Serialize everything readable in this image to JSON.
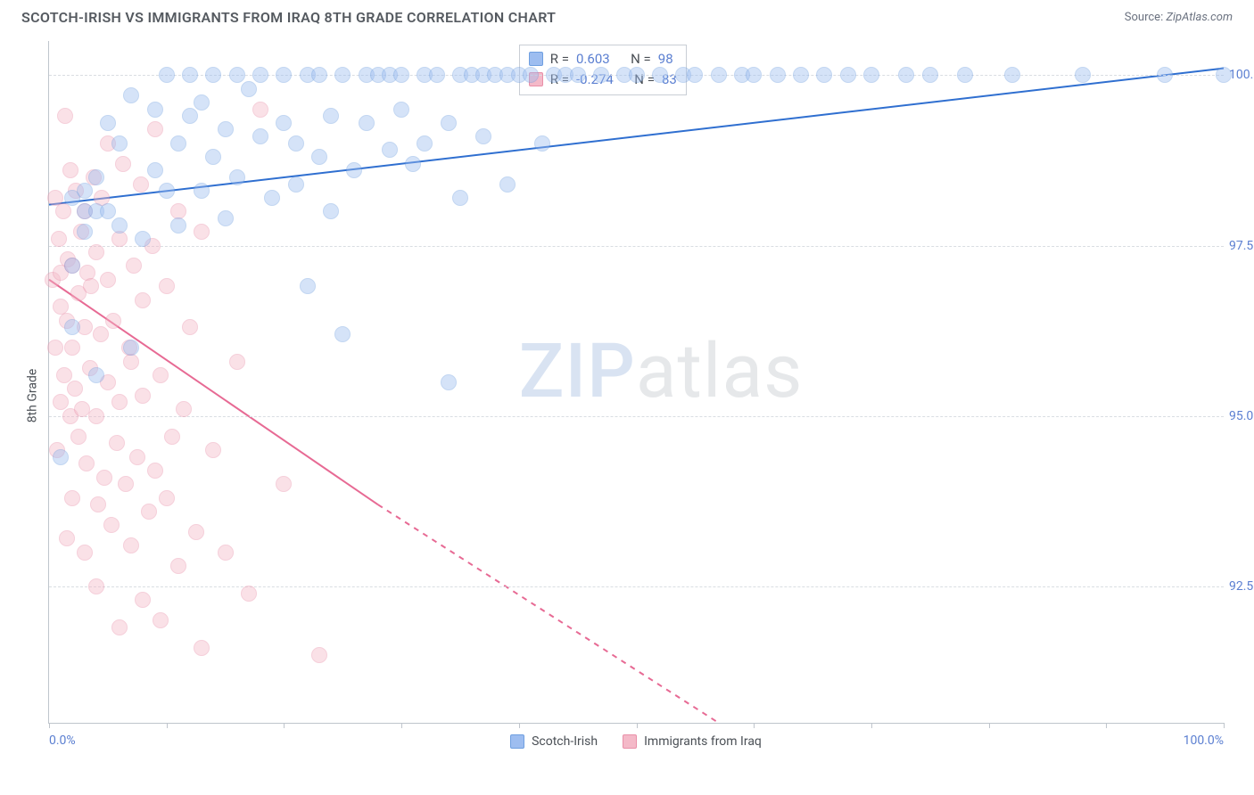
{
  "title": "SCOTCH-IRISH VS IMMIGRANTS FROM IRAQ 8TH GRADE CORRELATION CHART",
  "source_label": "Source:",
  "source_value": "ZipAtlas.com",
  "ylabel": "8th Grade",
  "watermark_a": "ZIP",
  "watermark_b": "atlas",
  "chart": {
    "type": "scatter",
    "xlim": [
      0,
      100
    ],
    "ylim": [
      90.5,
      100.5
    ],
    "ytick_values": [
      92.5,
      95.0,
      97.5,
      100.0
    ],
    "ytick_labels": [
      "92.5%",
      "95.0%",
      "97.5%",
      "100.0%"
    ],
    "xtick_values": [
      0,
      10,
      20,
      30,
      40,
      50,
      60,
      70,
      80,
      90,
      100
    ],
    "xtick_labels_shown": {
      "0": "0.0%",
      "100": "100.0%"
    },
    "background_color": "#ffffff",
    "grid_color": "#d9dde2",
    "axis_color": "#bfc5cc",
    "tick_label_color": "#5b7fd1",
    "marker_radius": 9,
    "marker_opacity": 0.42,
    "trend_line_width": 2
  },
  "series": {
    "blue": {
      "label": "Scotch-Irish",
      "color_fill": "#9dbdf0",
      "color_stroke": "#6f9fe0",
      "line_color": "#2f6fd0",
      "R": "0.603",
      "N": "98",
      "trend": {
        "x1": 0,
        "y1": 98.1,
        "x2": 100,
        "y2": 100.1
      },
      "points": [
        [
          1,
          94.4
        ],
        [
          2,
          96.3
        ],
        [
          2,
          97.2
        ],
        [
          2,
          98.2
        ],
        [
          3,
          97.7
        ],
        [
          3,
          98.0
        ],
        [
          3,
          98.3
        ],
        [
          4,
          95.6
        ],
        [
          4,
          98.0
        ],
        [
          4,
          98.5
        ],
        [
          5,
          98.0
        ],
        [
          5,
          99.3
        ],
        [
          6,
          97.8
        ],
        [
          6,
          99.0
        ],
        [
          7,
          96.0
        ],
        [
          7,
          99.7
        ],
        [
          8,
          97.6
        ],
        [
          9,
          98.6
        ],
        [
          9,
          99.5
        ],
        [
          10,
          100.0
        ],
        [
          10,
          98.3
        ],
        [
          11,
          97.8
        ],
        [
          11,
          99.0
        ],
        [
          12,
          99.4
        ],
        [
          12,
          100.0
        ],
        [
          13,
          98.3
        ],
        [
          13,
          99.6
        ],
        [
          14,
          98.8
        ],
        [
          14,
          100.0
        ],
        [
          15,
          97.9
        ],
        [
          15,
          99.2
        ],
        [
          16,
          98.5
        ],
        [
          16,
          100.0
        ],
        [
          17,
          99.8
        ],
        [
          18,
          99.1
        ],
        [
          18,
          100.0
        ],
        [
          19,
          98.2
        ],
        [
          20,
          99.3
        ],
        [
          20,
          100.0
        ],
        [
          21,
          98.4
        ],
        [
          21,
          99.0
        ],
        [
          22,
          96.9
        ],
        [
          22,
          100.0
        ],
        [
          23,
          98.8
        ],
        [
          23,
          100.0
        ],
        [
          24,
          98.0
        ],
        [
          24,
          99.4
        ],
        [
          25,
          96.2
        ],
        [
          25,
          100.0
        ],
        [
          26,
          98.6
        ],
        [
          27,
          100.0
        ],
        [
          27,
          99.3
        ],
        [
          28,
          100.0
        ],
        [
          29,
          98.9
        ],
        [
          29,
          100.0
        ],
        [
          30,
          99.5
        ],
        [
          30,
          100.0
        ],
        [
          31,
          98.7
        ],
        [
          32,
          100.0
        ],
        [
          32,
          99.0
        ],
        [
          33,
          100.0
        ],
        [
          34,
          95.5
        ],
        [
          34,
          99.3
        ],
        [
          35,
          100.0
        ],
        [
          35,
          98.2
        ],
        [
          36,
          100.0
        ],
        [
          37,
          99.1
        ],
        [
          37,
          100.0
        ],
        [
          38,
          100.0
        ],
        [
          39,
          98.4
        ],
        [
          39,
          100.0
        ],
        [
          40,
          100.0
        ],
        [
          41,
          100.0
        ],
        [
          42,
          99.0
        ],
        [
          43,
          100.0
        ],
        [
          44,
          100.0
        ],
        [
          45,
          100.0
        ],
        [
          47,
          100.0
        ],
        [
          49,
          100.0
        ],
        [
          50,
          100.0
        ],
        [
          52,
          100.0
        ],
        [
          54,
          100.0
        ],
        [
          55,
          100.0
        ],
        [
          57,
          100.0
        ],
        [
          59,
          100.0
        ],
        [
          60,
          100.0
        ],
        [
          62,
          100.0
        ],
        [
          64,
          100.0
        ],
        [
          66,
          100.0
        ],
        [
          68,
          100.0
        ],
        [
          70,
          100.0
        ],
        [
          73,
          100.0
        ],
        [
          75,
          100.0
        ],
        [
          78,
          100.0
        ],
        [
          82,
          100.0
        ],
        [
          88,
          100.0
        ],
        [
          95,
          100.0
        ],
        [
          100,
          100.0
        ]
      ]
    },
    "pink": {
      "label": "Immigrants from Iraq",
      "color_fill": "#f4b9c8",
      "color_stroke": "#e98fa8",
      "line_color": "#e76a94",
      "R": "-0.274",
      "N": "83",
      "trend_solid": {
        "x1": 0,
        "y1": 97.0,
        "x2": 28,
        "y2": 93.7
      },
      "trend_dashed": {
        "x1": 28,
        "y1": 93.7,
        "x2": 57,
        "y2": 90.5
      },
      "points": [
        [
          0.3,
          97.0
        ],
        [
          0.5,
          96.0
        ],
        [
          0.5,
          98.2
        ],
        [
          0.7,
          94.5
        ],
        [
          0.8,
          97.6
        ],
        [
          1,
          95.2
        ],
        [
          1,
          96.6
        ],
        [
          1,
          97.1
        ],
        [
          1.2,
          98.0
        ],
        [
          1.3,
          95.6
        ],
        [
          1.4,
          99.4
        ],
        [
          1.5,
          93.2
        ],
        [
          1.5,
          96.4
        ],
        [
          1.6,
          97.3
        ],
        [
          1.8,
          95.0
        ],
        [
          1.8,
          98.6
        ],
        [
          2,
          93.8
        ],
        [
          2,
          96.0
        ],
        [
          2,
          97.2
        ],
        [
          2.2,
          95.4
        ],
        [
          2.3,
          98.3
        ],
        [
          2.5,
          94.7
        ],
        [
          2.5,
          96.8
        ],
        [
          2.7,
          97.7
        ],
        [
          2.8,
          95.1
        ],
        [
          3,
          93.0
        ],
        [
          3,
          96.3
        ],
        [
          3,
          98.0
        ],
        [
          3.2,
          94.3
        ],
        [
          3.3,
          97.1
        ],
        [
          3.5,
          95.7
        ],
        [
          3.6,
          96.9
        ],
        [
          3.8,
          98.5
        ],
        [
          4,
          92.5
        ],
        [
          4,
          95.0
        ],
        [
          4,
          97.4
        ],
        [
          4.2,
          93.7
        ],
        [
          4.4,
          96.2
        ],
        [
          4.5,
          98.2
        ],
        [
          4.7,
          94.1
        ],
        [
          5,
          95.5
        ],
        [
          5,
          97.0
        ],
        [
          5,
          99.0
        ],
        [
          5.3,
          93.4
        ],
        [
          5.5,
          96.4
        ],
        [
          5.8,
          94.6
        ],
        [
          6,
          91.9
        ],
        [
          6,
          95.2
        ],
        [
          6,
          97.6
        ],
        [
          6.3,
          98.7
        ],
        [
          6.5,
          94.0
        ],
        [
          6.8,
          96.0
        ],
        [
          7,
          93.1
        ],
        [
          7,
          95.8
        ],
        [
          7.2,
          97.2
        ],
        [
          7.5,
          94.4
        ],
        [
          7.8,
          98.4
        ],
        [
          8,
          92.3
        ],
        [
          8,
          95.3
        ],
        [
          8,
          96.7
        ],
        [
          8.5,
          93.6
        ],
        [
          8.8,
          97.5
        ],
        [
          9,
          94.2
        ],
        [
          9,
          99.2
        ],
        [
          9.5,
          92.0
        ],
        [
          9.5,
          95.6
        ],
        [
          10,
          93.8
        ],
        [
          10,
          96.9
        ],
        [
          10.5,
          94.7
        ],
        [
          11,
          98.0
        ],
        [
          11,
          92.8
        ],
        [
          11.5,
          95.1
        ],
        [
          12,
          96.3
        ],
        [
          12.5,
          93.3
        ],
        [
          13,
          97.7
        ],
        [
          13,
          91.6
        ],
        [
          14,
          94.5
        ],
        [
          15,
          93.0
        ],
        [
          16,
          95.8
        ],
        [
          17,
          92.4
        ],
        [
          18,
          99.5
        ],
        [
          20,
          94.0
        ],
        [
          23,
          91.5
        ]
      ]
    }
  },
  "stats_legend": {
    "r_label": "R =",
    "n_label": "N ="
  }
}
